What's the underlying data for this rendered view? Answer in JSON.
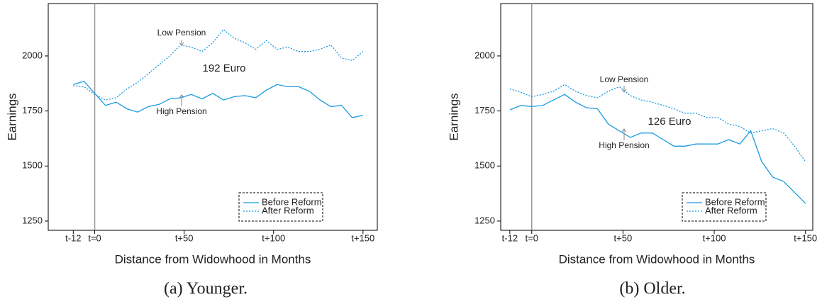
{
  "chart_data": [
    {
      "type": "line",
      "caption": "(a) Younger.",
      "xlabel": "Distance from Widowhood in Months",
      "ylabel": "Earnings",
      "x": [
        -12,
        -6,
        0,
        6,
        12,
        18,
        24,
        30,
        36,
        42,
        48,
        54,
        60,
        66,
        72,
        78,
        84,
        90,
        96,
        102,
        108,
        114,
        120,
        126,
        132,
        138,
        144,
        150
      ],
      "series": [
        {
          "name": "Before Reform",
          "color": "#1a9be0",
          "dash": "solid",
          "values": [
            1870,
            1885,
            1830,
            1775,
            1790,
            1760,
            1745,
            1770,
            1780,
            1805,
            1810,
            1825,
            1805,
            1830,
            1800,
            1815,
            1820,
            1810,
            1845,
            1870,
            1860,
            1860,
            1840,
            1800,
            1770,
            1775,
            1720,
            1730
          ]
        },
        {
          "name": "After Reform",
          "color": "#1a9be0",
          "dash": "dotted",
          "values": [
            1865,
            1860,
            1825,
            1800,
            1810,
            1850,
            1880,
            1920,
            1960,
            2000,
            2050,
            2040,
            2020,
            2060,
            2120,
            2080,
            2060,
            2030,
            2070,
            2030,
            2040,
            2020,
            2020,
            2030,
            2050,
            1990,
            1980,
            2020
          ]
        }
      ],
      "xlim": [
        -26,
        158
      ],
      "ylim": [
        1208,
        2238
      ],
      "xticks": [
        {
          "value": -12,
          "label": "t-12"
        },
        {
          "value": 0,
          "label": "t=0"
        },
        {
          "value": 50,
          "label": "t+50"
        },
        {
          "value": 100,
          "label": "t+100"
        },
        {
          "value": 150,
          "label": "t+150"
        }
      ],
      "yticks": [
        1250,
        1500,
        1750,
        2000
      ],
      "vline": 0,
      "vline_color": "#999999",
      "legend": "lower right",
      "annotations": [
        {
          "text": "Low Pension",
          "color": "#111111"
        },
        {
          "text": "High Pension",
          "color": "#111111"
        },
        {
          "text": "192 Euro",
          "color": "#e8131b"
        }
      ]
    },
    {
      "type": "line",
      "caption": "(b) Older.",
      "xlabel": "Distance from Widowhood in Months",
      "ylabel": "Earnings",
      "x": [
        -12,
        -6,
        0,
        6,
        12,
        18,
        24,
        30,
        36,
        42,
        48,
        54,
        60,
        66,
        72,
        78,
        84,
        90,
        96,
        102,
        108,
        114,
        120,
        126,
        132,
        138,
        144,
        150
      ],
      "series": [
        {
          "name": "Before Reform",
          "color": "#1a9be0",
          "dash": "solid",
          "values": [
            1755,
            1775,
            1770,
            1775,
            1800,
            1825,
            1790,
            1765,
            1760,
            1690,
            1660,
            1630,
            1650,
            1650,
            1620,
            1590,
            1590,
            1600,
            1600,
            1600,
            1620,
            1600,
            1660,
            1520,
            1450,
            1430,
            1380,
            1330
          ]
        },
        {
          "name": "After Reform",
          "color": "#1a9be0",
          "dash": "dotted",
          "values": [
            1850,
            1835,
            1815,
            1825,
            1840,
            1870,
            1840,
            1820,
            1810,
            1840,
            1860,
            1820,
            1800,
            1790,
            1775,
            1760,
            1740,
            1740,
            1720,
            1720,
            1690,
            1680,
            1650,
            1660,
            1670,
            1650,
            1590,
            1520
          ]
        }
      ],
      "xlim": [
        -17,
        154
      ],
      "ylim": [
        1208,
        2238
      ],
      "xticks": [
        {
          "value": -12,
          "label": "t-12"
        },
        {
          "value": 0,
          "label": "t=0"
        },
        {
          "value": 50,
          "label": "t+50"
        },
        {
          "value": 100,
          "label": "t+100"
        },
        {
          "value": 150,
          "label": "t+150"
        }
      ],
      "yticks": [
        1250,
        1500,
        1750,
        2000
      ],
      "vline": 0,
      "vline_color": "#999999",
      "legend": "lower right",
      "annotations": [
        {
          "text": "Low Pension",
          "color": "#111111"
        },
        {
          "text": "High Pension",
          "color": "#111111"
        },
        {
          "text": "126 Euro",
          "color": "#e8131b"
        }
      ]
    }
  ]
}
